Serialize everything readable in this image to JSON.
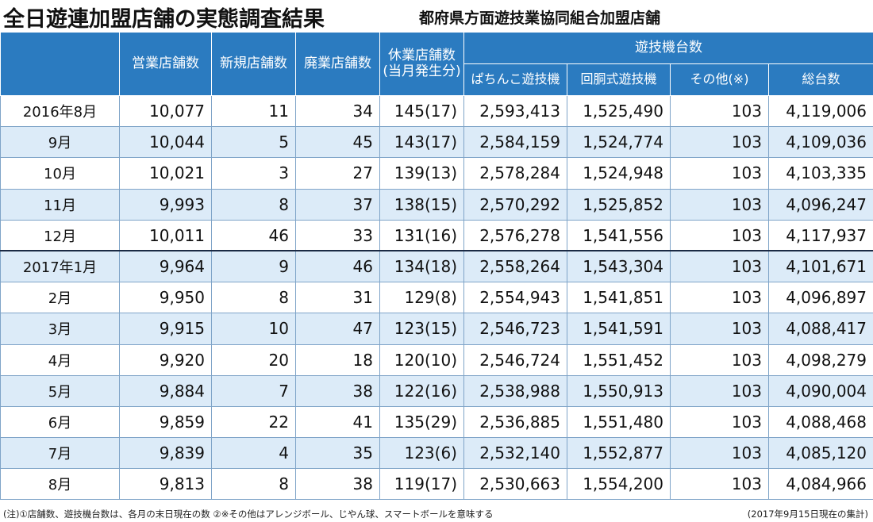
{
  "title": "全日遊連加盟店舗の実態調査結果",
  "subtitle": "都府県方面遊技業協同組合加盟店舗",
  "headers": {
    "eigyo": "営業店舗数",
    "shinki": "新規店舗数",
    "haigyo": "廃業店舗数",
    "kyugyo_line1": "休業店舗数",
    "kyugyo_line2": "(当月発生分)",
    "machines_group": "遊技機台数",
    "pachinko": "ぱちんこ遊技機",
    "pachislot": "回胴式遊技機",
    "other": "その他(※)",
    "total": "総台数"
  },
  "rows": [
    {
      "month": "2016年8月",
      "eigyo": "10,077",
      "shinki": "11",
      "haigyo": "34",
      "kyugyo": "145(17)",
      "pachinko": "2,593,413",
      "pachislot": "1,525,490",
      "other": "103",
      "total": "4,119,006"
    },
    {
      "month": "9月",
      "eigyo": "10,044",
      "shinki": "5",
      "haigyo": "45",
      "kyugyo": "143(17)",
      "pachinko": "2,584,159",
      "pachislot": "1,524,774",
      "other": "103",
      "total": "4,109,036"
    },
    {
      "month": "10月",
      "eigyo": "10,021",
      "shinki": "3",
      "haigyo": "27",
      "kyugyo": "139(13)",
      "pachinko": "2,578,284",
      "pachislot": "1,524,948",
      "other": "103",
      "total": "4,103,335"
    },
    {
      "month": "11月",
      "eigyo": "9,993",
      "shinki": "8",
      "haigyo": "37",
      "kyugyo": "138(15)",
      "pachinko": "2,570,292",
      "pachislot": "1,525,852",
      "other": "103",
      "total": "4,096,247"
    },
    {
      "month": "12月",
      "eigyo": "10,011",
      "shinki": "46",
      "haigyo": "33",
      "kyugyo": "131(16)",
      "pachinko": "2,576,278",
      "pachislot": "1,541,556",
      "other": "103",
      "total": "4,117,937"
    },
    {
      "month": "2017年1月",
      "eigyo": "9,964",
      "shinki": "9",
      "haigyo": "46",
      "kyugyo": "134(18)",
      "pachinko": "2,558,264",
      "pachislot": "1,543,304",
      "other": "103",
      "total": "4,101,671"
    },
    {
      "month": "2月",
      "eigyo": "9,950",
      "shinki": "8",
      "haigyo": "31",
      "kyugyo": "129(8)",
      "pachinko": "2,554,943",
      "pachislot": "1,541,851",
      "other": "103",
      "total": "4,096,897"
    },
    {
      "month": "3月",
      "eigyo": "9,915",
      "shinki": "10",
      "haigyo": "47",
      "kyugyo": "123(15)",
      "pachinko": "2,546,723",
      "pachislot": "1,541,591",
      "other": "103",
      "total": "4,088,417"
    },
    {
      "month": "4月",
      "eigyo": "9,920",
      "shinki": "20",
      "haigyo": "18",
      "kyugyo": "120(10)",
      "pachinko": "2,546,724",
      "pachislot": "1,551,452",
      "other": "103",
      "total": "4,098,279"
    },
    {
      "month": "5月",
      "eigyo": "9,884",
      "shinki": "7",
      "haigyo": "38",
      "kyugyo": "122(16)",
      "pachinko": "2,538,988",
      "pachislot": "1,550,913",
      "other": "103",
      "total": "4,090,004"
    },
    {
      "month": "6月",
      "eigyo": "9,859",
      "shinki": "22",
      "haigyo": "41",
      "kyugyo": "135(29)",
      "pachinko": "2,536,885",
      "pachislot": "1,551,480",
      "other": "103",
      "total": "4,088,468"
    },
    {
      "month": "7月",
      "eigyo": "9,839",
      "shinki": "4",
      "haigyo": "35",
      "kyugyo": "123(6)",
      "pachinko": "2,532,140",
      "pachislot": "1,552,877",
      "other": "103",
      "total": "4,085,120"
    },
    {
      "month": "8月",
      "eigyo": "9,813",
      "shinki": "8",
      "haigyo": "38",
      "kyugyo": "119(17)",
      "pachinko": "2,530,663",
      "pachislot": "1,554,200",
      "other": "103",
      "total": "4,084,966"
    }
  ],
  "footer": {
    "note": "(注)①店舗数、遊技機台数は、各月の末日現在の数  ②※その他はアレンジボール、じやん球、スマートボールを意味する",
    "asof": "(2017年9月15日現在の集計)"
  },
  "colors": {
    "header_bg": "#2b7bc0",
    "alt_row_bg": "#dcebf8",
    "grid_line": "#7fa4c8"
  }
}
